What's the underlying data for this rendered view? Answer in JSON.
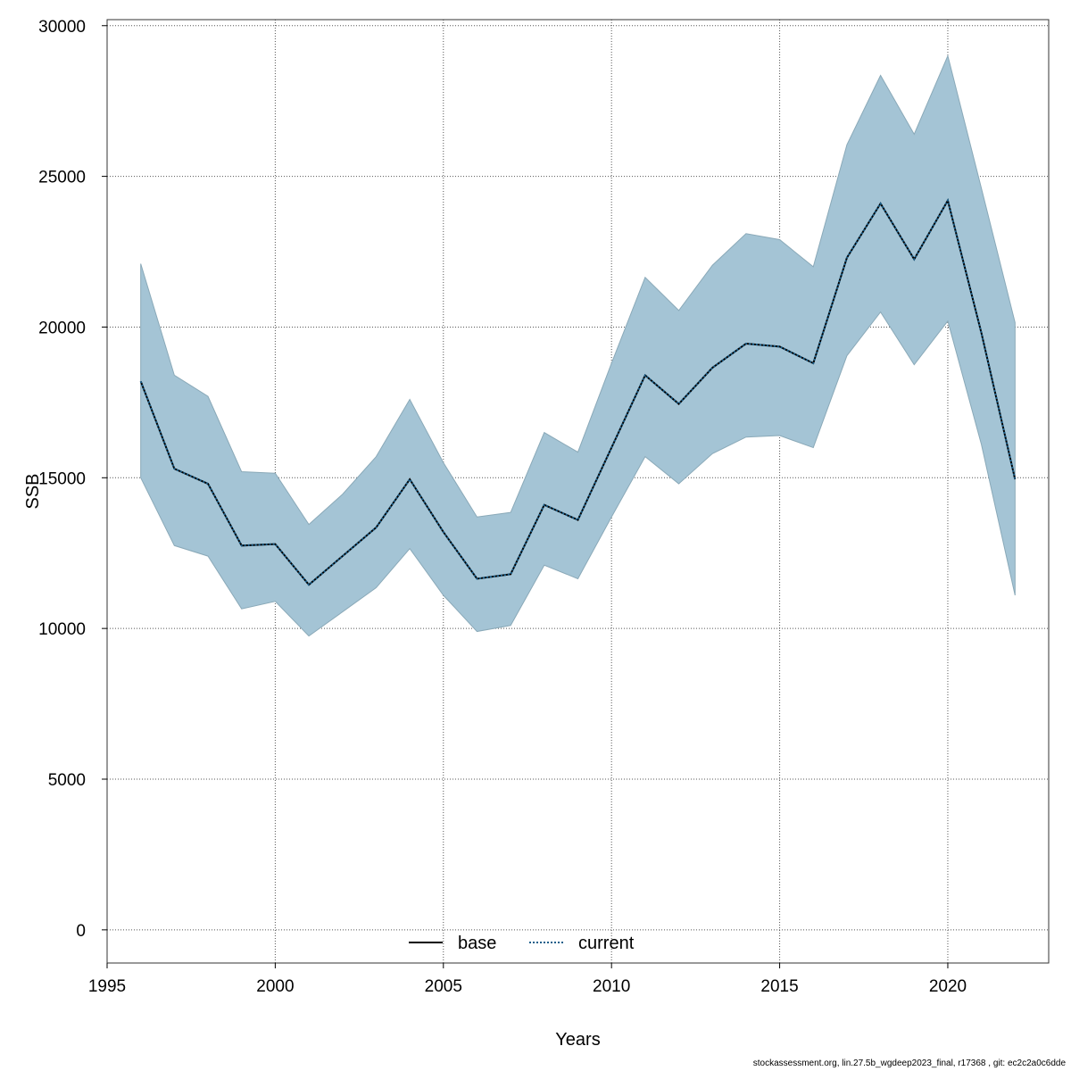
{
  "chart_data": {
    "type": "area",
    "xlabel": "Years",
    "ylabel": "SSB",
    "xlim": [
      1995,
      2023
    ],
    "ylim": [
      -1100,
      30200
    ],
    "x_ticks": [
      1995,
      2000,
      2005,
      2010,
      2015,
      2020
    ],
    "y_ticks": [
      0,
      5000,
      10000,
      15000,
      20000,
      25000,
      30000
    ],
    "grid": true,
    "legend_position": "bottom-center",
    "x": [
      1996,
      1997,
      1998,
      1999,
      2000,
      2001,
      2002,
      2003,
      2004,
      2005,
      2006,
      2007,
      2008,
      2009,
      2010,
      2011,
      2012,
      2013,
      2014,
      2015,
      2016,
      2017,
      2018,
      2019,
      2020,
      2021,
      2022
    ],
    "band": {
      "upper": [
        22100,
        18400,
        17700,
        15200,
        15150,
        13450,
        14450,
        15700,
        17600,
        15500,
        13700,
        13850,
        16500,
        15850,
        18800,
        21650,
        20550,
        22050,
        23100,
        22900,
        22000,
        26050,
        28350,
        26400,
        29000,
        24600,
        20150
      ],
      "lower": [
        15000,
        12750,
        12400,
        10650,
        10900,
        9750,
        10550,
        11350,
        12650,
        11100,
        9900,
        10100,
        12100,
        11650,
        13700,
        15700,
        14800,
        15800,
        16350,
        16400,
        16000,
        19050,
        20500,
        18750,
        20200,
        16100,
        11100
      ],
      "color": "#a4c4d5"
    },
    "series": [
      {
        "name": "base",
        "values": [
          18200,
          15300,
          14800,
          12750,
          12800,
          11450,
          12400,
          13350,
          14950,
          13200,
          11650,
          11800,
          14100,
          13600,
          16000,
          18400,
          17450,
          18650,
          19450,
          19350,
          18800,
          22300,
          24100,
          22250,
          24200,
          19800,
          14950
        ],
        "color": "#000000",
        "line_style": "solid"
      },
      {
        "name": "current",
        "values": [
          18200,
          15300,
          14800,
          12750,
          12800,
          11450,
          12400,
          13350,
          14950,
          13200,
          11650,
          11800,
          14100,
          13600,
          16000,
          18400,
          17450,
          18650,
          19450,
          19350,
          18800,
          22300,
          24100,
          22250,
          24200,
          19800,
          14950
        ],
        "color": "#1b5f8a",
        "line_style": "dashed"
      }
    ]
  },
  "footer": "stockassessment.org, lin.27.5b_wgdeep2023_final, r17368 , git: ec2c2a0c6dde"
}
